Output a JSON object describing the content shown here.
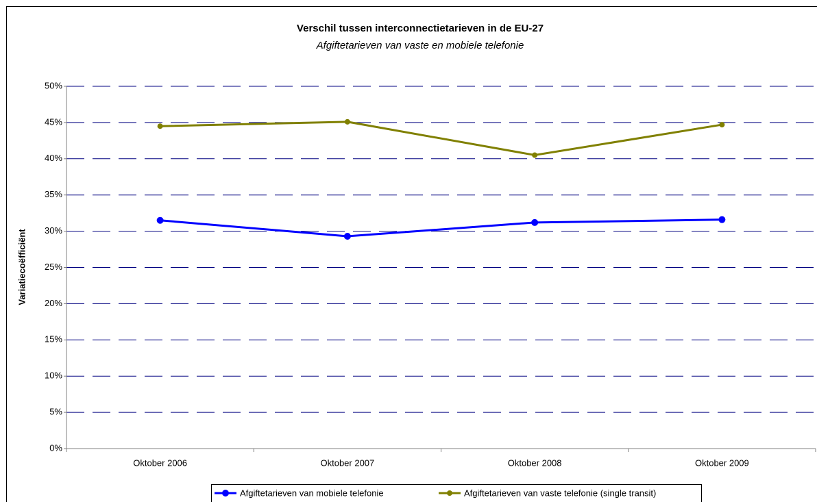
{
  "chart_data": {
    "type": "line",
    "title": "Verschil tussen interconnectietarieven in de EU-27",
    "subtitle": "Afgiftetarieven van vaste en mobiele telefonie",
    "y_label": "Variatiecoëfficiënt",
    "categories": [
      "Oktober 2006",
      "Oktober 2007",
      "Oktober 2008",
      "Oktober 2009"
    ],
    "series": [
      {
        "name": "Afgiftetarieven van mobiele telefonie",
        "color": "#0000ff",
        "values": [
          31.5,
          29.3,
          31.2,
          31.6
        ]
      },
      {
        "name": "Afgiftetarieven van vaste telefonie (single transit)",
        "color": "#808000",
        "values": [
          44.5,
          45.1,
          40.5,
          44.7
        ]
      }
    ],
    "ylim": [
      0,
      50
    ],
    "yticks": [
      {
        "value": 0,
        "label": "0%"
      },
      {
        "value": 5,
        "label": "5%"
      },
      {
        "value": 10,
        "label": "10%"
      },
      {
        "value": 15,
        "label": "15%"
      },
      {
        "value": 20,
        "label": "20%"
      },
      {
        "value": 25,
        "label": "25%"
      },
      {
        "value": 30,
        "label": "30%"
      },
      {
        "value": 35,
        "label": "35%"
      },
      {
        "value": 40,
        "label": "40%"
      },
      {
        "value": 45,
        "label": "45%"
      },
      {
        "value": 50,
        "label": "50%"
      }
    ],
    "grid": true,
    "legend": "bottom"
  }
}
